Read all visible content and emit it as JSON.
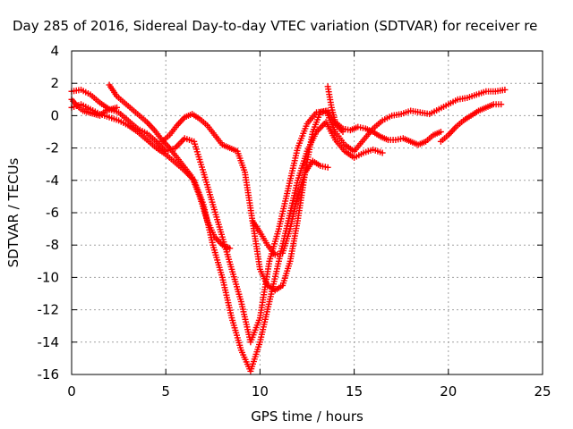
{
  "chart_data": {
    "type": "scatter",
    "title": "Day 285 of 2016, Sidereal Day-to-day VTEC variation (SDTVAR) for receiver re",
    "xlabel": "GPS time / hours",
    "ylabel": "SDTVAR / TECUs",
    "xlim": [
      0,
      25
    ],
    "ylim": [
      -16,
      4
    ],
    "x_ticks": [
      "0",
      "5",
      "10",
      "15",
      "20",
      "25"
    ],
    "y_ticks": [
      "4",
      "2",
      "0",
      "-2",
      "-4",
      "-6",
      "-8",
      "-10",
      "-12",
      "-14",
      "-16"
    ],
    "grid": true,
    "marker": "plus",
    "color": "#ff0000",
    "series": [
      {
        "x": [
          0.0,
          0.5,
          1.0,
          1.5,
          2.0,
          2.5,
          3.0,
          3.5,
          4.0,
          4.5,
          5.0,
          5.5,
          6.0,
          6.5,
          7.0,
          7.5,
          8.0,
          8.5,
          9.0,
          9.5,
          10.0,
          10.5,
          11.0,
          11.5,
          12.0,
          12.5,
          13.0,
          13.5,
          14.0,
          14.5,
          15.0,
          15.5,
          16.0,
          16.5,
          17.0,
          17.5,
          18.0,
          18.5,
          19.0,
          19.5,
          20.0,
          20.5,
          21.0,
          21.5,
          22.0,
          22.5,
          23.0
        ],
        "y": [
          1.5,
          1.6,
          1.3,
          0.8,
          0.4,
          0.2,
          -0.3,
          -0.8,
          -1.1,
          -1.6,
          -2.2,
          -2.0,
          -1.4,
          -1.6,
          -3.5,
          -5.5,
          -7.5,
          -9.5,
          -11.5,
          -14.0,
          -12.5,
          -9.0,
          -7.0,
          -4.5,
          -2.0,
          -0.5,
          0.2,
          0.3,
          -1.0,
          -1.8,
          -2.2,
          -1.5,
          -0.8,
          -0.3,
          0.0,
          0.1,
          0.3,
          0.2,
          0.1,
          0.4,
          0.7,
          1.0,
          1.1,
          1.3,
          1.5,
          1.5,
          1.6
        ]
      },
      {
        "x": [
          0.0,
          0.5,
          1.0,
          1.5,
          2.0,
          2.5,
          3.0,
          3.5,
          4.0,
          4.5,
          5.0,
          5.5,
          6.0,
          6.5,
          7.0,
          7.5,
          8.0,
          8.5,
          9.0,
          9.5,
          10.0,
          10.5,
          11.0,
          11.5,
          12.0,
          12.5,
          13.0,
          13.5,
          14.0,
          14.5,
          15.0,
          15.5,
          16.0,
          16.5
        ],
        "y": [
          0.5,
          0.7,
          0.4,
          0.1,
          -0.1,
          -0.3,
          -0.6,
          -1.0,
          -1.5,
          -2.0,
          -2.4,
          -2.9,
          -3.4,
          -4.0,
          -5.5,
          -8.0,
          -10.0,
          -12.5,
          -14.5,
          -15.8,
          -14.0,
          -11.5,
          -9.0,
          -6.5,
          -4.0,
          -2.2,
          -1.0,
          -0.4,
          -1.5,
          -2.2,
          -2.6,
          -2.3,
          -2.1,
          -2.3
        ]
      },
      {
        "x": [
          4.8,
          5.2,
          5.6,
          6.0,
          6.4,
          6.8,
          7.2,
          7.6,
          8.0,
          8.4,
          8.8,
          9.2,
          9.6,
          10.0,
          10.4,
          10.8,
          11.2,
          11.6,
          12.0,
          12.4,
          12.8,
          13.2,
          13.6,
          14.0,
          14.4
        ],
        "y": [
          -1.6,
          -1.2,
          -0.6,
          -0.1,
          0.1,
          -0.2,
          -0.6,
          -1.2,
          -1.8,
          -2.0,
          -2.2,
          -3.5,
          -6.5,
          -9.5,
          -10.5,
          -10.8,
          -10.5,
          -9.0,
          -6.5,
          -3.5,
          -1.0,
          0.2,
          0.3,
          -0.5,
          -1.0
        ]
      },
      {
        "x": [
          2.0,
          2.4,
          2.8,
          3.2,
          3.6,
          4.0,
          4.4,
          4.8,
          5.2,
          5.6,
          6.0,
          6.4,
          6.8,
          7.2,
          7.6,
          8.0,
          8.4
        ],
        "y": [
          1.9,
          1.2,
          0.8,
          0.4,
          0.0,
          -0.4,
          -0.9,
          -1.5,
          -2.0,
          -2.6,
          -3.2,
          -3.8,
          -5.0,
          -6.5,
          -7.5,
          -8.0,
          -8.2
        ]
      },
      {
        "x": [
          13.6,
          13.8,
          14.0,
          14.4,
          14.8,
          15.2,
          15.6,
          16.0,
          16.4,
          16.8,
          17.2,
          17.6,
          18.0,
          18.4,
          18.8,
          19.2,
          19.6
        ],
        "y": [
          1.8,
          0.5,
          -0.4,
          -0.8,
          -0.9,
          -0.7,
          -0.8,
          -1.0,
          -1.3,
          -1.5,
          -1.5,
          -1.4,
          -1.6,
          -1.8,
          -1.6,
          -1.2,
          -1.0
        ]
      },
      {
        "x": [
          19.6,
          20.0,
          20.4,
          20.8,
          21.2,
          21.6,
          22.0,
          22.4,
          22.8
        ],
        "y": [
          -1.6,
          -1.2,
          -0.7,
          -0.3,
          0.0,
          0.3,
          0.5,
          0.7,
          0.7
        ]
      },
      {
        "x": [
          9.6,
          10.0,
          10.4,
          10.8,
          11.2,
          11.6,
          12.0,
          12.4,
          12.8,
          13.2,
          13.6
        ],
        "y": [
          -6.5,
          -7.2,
          -8.0,
          -8.6,
          -8.5,
          -7.0,
          -5.0,
          -3.5,
          -2.8,
          -3.1,
          -3.2
        ]
      },
      {
        "x": [
          0.0,
          0.3,
          0.6,
          0.9,
          1.2,
          1.5,
          1.8,
          2.1,
          2.4
        ],
        "y": [
          1.0,
          0.6,
          0.3,
          0.2,
          0.1,
          0.0,
          0.3,
          0.4,
          0.5
        ]
      }
    ]
  }
}
